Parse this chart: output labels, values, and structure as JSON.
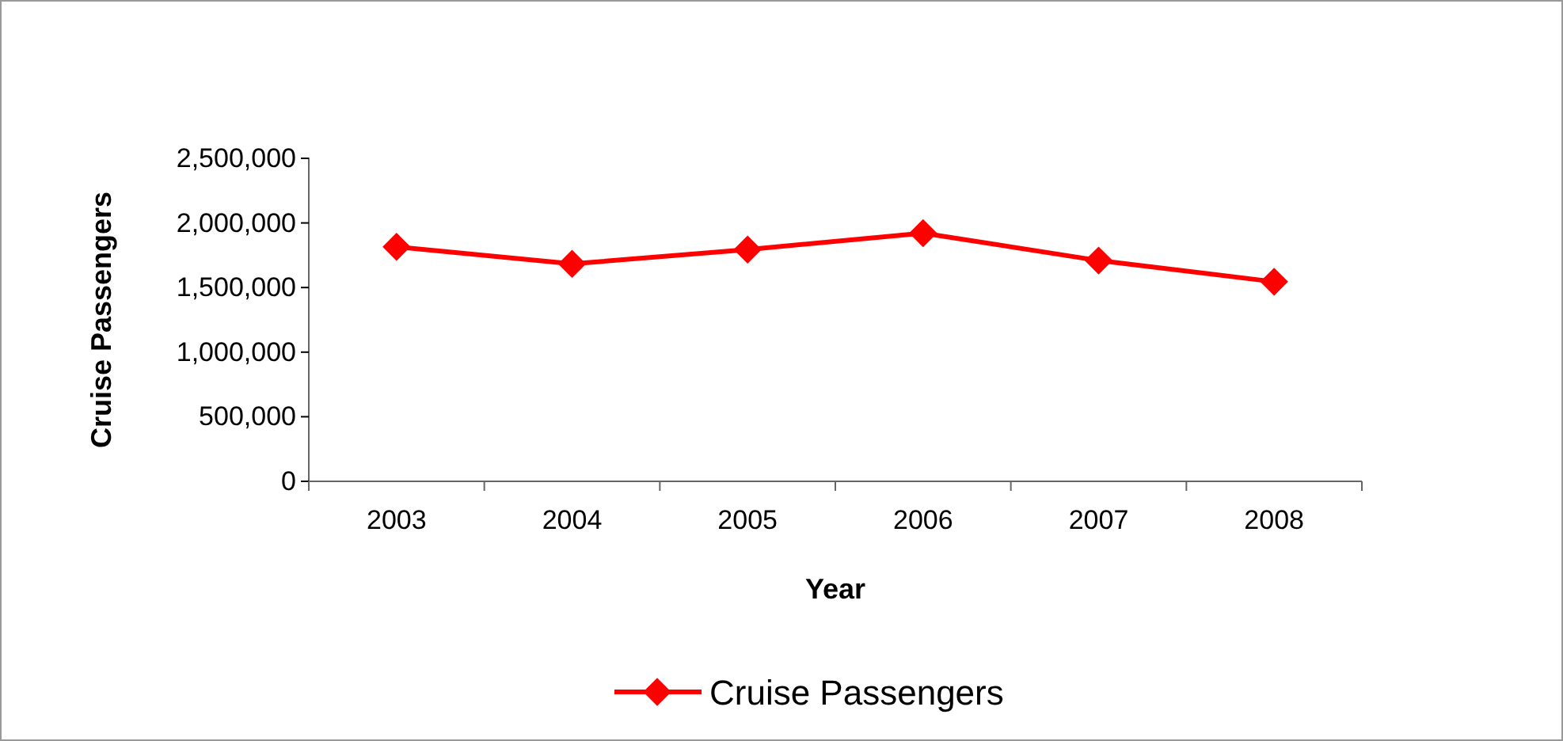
{
  "chart_data": {
    "type": "line",
    "xlabel": "Year",
    "ylabel": "Cruise Passengers",
    "categories": [
      "2003",
      "2004",
      "2005",
      "2006",
      "2007",
      "2008"
    ],
    "series": [
      {
        "name": "Cruise Passengers",
        "color": "#ff0000",
        "values": [
          1815000,
          1683000,
          1794000,
          1921000,
          1709000,
          1545000
        ]
      }
    ],
    "ylim": [
      0,
      2500000
    ],
    "yticks": [
      {
        "value": 0,
        "label": "0"
      },
      {
        "value": 500000,
        "label": "500,000"
      },
      {
        "value": 1000000,
        "label": "1,000,000"
      },
      {
        "value": 1500000,
        "label": "1,500,000"
      },
      {
        "value": 2000000,
        "label": "2,000,000"
      },
      {
        "value": 2500000,
        "label": "2,500,000"
      }
    ],
    "grid": false,
    "legend": "bottom",
    "marker": "diamond",
    "line_style": "solid"
  }
}
